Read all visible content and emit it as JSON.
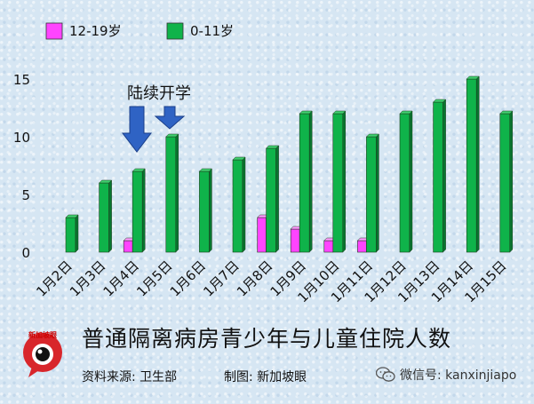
{
  "chart_data": {
    "type": "bar",
    "categories": [
      "1月2日",
      "1月3日",
      "1月4日",
      "1月5日",
      "1月6日",
      "1月7日",
      "1月8日",
      "1月9日",
      "1月10日",
      "1月11日",
      "1月12日",
      "1月13日",
      "1月14日",
      "1月15日"
    ],
    "series": [
      {
        "name": "12-19岁",
        "color": "#ff44ff",
        "values": [
          0,
          0,
          1,
          0,
          0,
          0,
          3,
          2,
          1,
          1,
          0,
          0,
          0,
          0
        ]
      },
      {
        "name": "0-11岁",
        "color": "#0fb34a",
        "values": [
          3,
          6,
          7,
          10,
          7,
          8,
          9,
          12,
          12,
          10,
          12,
          13,
          15,
          12
        ]
      }
    ],
    "yticks": [
      0,
      5,
      10,
      15
    ],
    "ylim": [
      0,
      16
    ],
    "annotation": "陆续开学",
    "grid": false,
    "legend": "top-left"
  },
  "caption": {
    "title": "普通隔离病房青少年与儿童住院人数",
    "source": "资料来源:  卫生部",
    "maker": "制图:  新加坡眼"
  },
  "logo": {
    "text": "新加坡眼"
  },
  "wechat": {
    "text": "微信号: kanxinjiapo"
  }
}
